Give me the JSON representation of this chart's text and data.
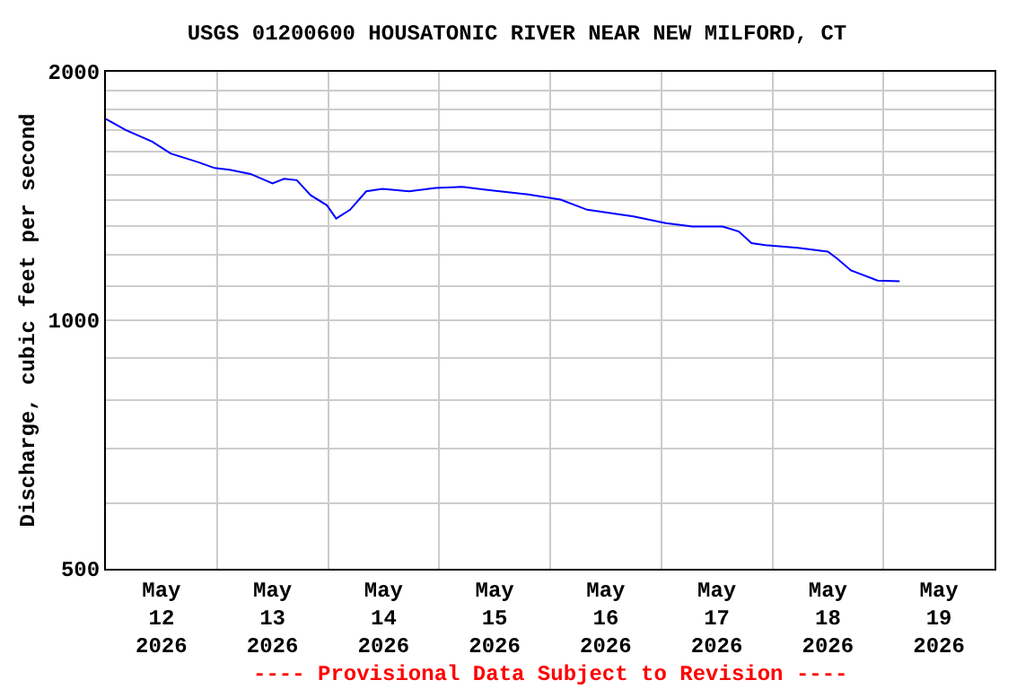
{
  "chart_data": {
    "type": "line",
    "title": "USGS 01200600 HOUSATONIC RIVER NEAR NEW MILFORD, CT",
    "ylabel": "Discharge, cubic feet per second",
    "annotations": [
      "---- Provisional Data Subject to Revision ----"
    ],
    "x": [
      "2026-05-12T00:00",
      "2026-05-12T04:15",
      "2026-05-12T10:00",
      "2026-05-12T14:00",
      "2026-05-12T20:00",
      "2026-05-12T23:30",
      "2026-05-13T03:00",
      "2026-05-13T07:15",
      "2026-05-13T12:00",
      "2026-05-13T14:30",
      "2026-05-13T17:15",
      "2026-05-13T20:15",
      "2026-05-13T23:45",
      "2026-05-14T01:45",
      "2026-05-14T04:45",
      "2026-05-14T08:15",
      "2026-05-14T11:45",
      "2026-05-14T17:30",
      "2026-05-14T23:15",
      "2026-05-15T05:00",
      "2026-05-15T10:30",
      "2026-05-15T19:15",
      "2026-05-16T02:15",
      "2026-05-16T08:00",
      "2026-05-16T18:00",
      "2026-05-17T01:00",
      "2026-05-17T06:45",
      "2026-05-17T13:15",
      "2026-05-17T16:45",
      "2026-05-17T19:30",
      "2026-05-17T22:30",
      "2026-05-18T05:30",
      "2026-05-18T12:00",
      "2026-05-18T14:00",
      "2026-05-18T17:00",
      "2026-05-18T22:45",
      "2026-05-19T03:30"
    ],
    "series": [
      {
        "color": "#0000ff",
        "values": [
          1753,
          1700,
          1646,
          1592,
          1554,
          1529,
          1521,
          1504,
          1465,
          1484,
          1478,
          1417,
          1378,
          1328,
          1361,
          1433,
          1443,
          1433,
          1446,
          1451,
          1438,
          1420,
          1400,
          1361,
          1336,
          1311,
          1299,
          1299,
          1281,
          1240,
          1233,
          1224,
          1211,
          1188,
          1149,
          1117,
          1115
        ]
      }
    ],
    "log": true,
    "ylim": [
      500,
      2000
    ],
    "yticks": [
      500,
      {
        "value": 600,
        "label": null
      },
      {
        "value": 700,
        "label": null
      },
      {
        "value": 800,
        "label": null
      },
      {
        "value": 900,
        "label": null
      },
      1000,
      {
        "value": 1100,
        "label": null
      },
      {
        "value": 1200,
        "label": null
      },
      {
        "value": 1300,
        "label": null
      },
      {
        "value": 1400,
        "label": null
      },
      {
        "value": 1500,
        "label": null
      },
      {
        "value": 1600,
        "label": null
      },
      {
        "value": 1700,
        "label": null
      },
      {
        "value": 1800,
        "label": null
      },
      {
        "value": 1900,
        "label": null
      },
      2000
    ],
    "xlim": [
      "2026-05-12T00:00",
      "2026-05-20T00:00"
    ],
    "xticks": [
      {
        "value": "2026-05-12T12:00",
        "label": "May\n12\n2026"
      },
      {
        "value": "2026-05-13T00:00",
        "label": null
      },
      {
        "value": "2026-05-13T12:00",
        "label": "May\n13\n2026"
      },
      {
        "value": "2026-05-14T00:00",
        "label": null
      },
      {
        "value": "2026-05-14T12:00",
        "label": "May\n14\n2026"
      },
      {
        "value": "2026-05-15T00:00",
        "label": null
      },
      {
        "value": "2026-05-15T12:00",
        "label": "May\n15\n2026"
      },
      {
        "value": "2026-05-16T00:00",
        "label": null
      },
      {
        "value": "2026-05-16T12:00",
        "label": "May\n16\n2026"
      },
      {
        "value": "2026-05-17T00:00",
        "label": null
      },
      {
        "value": "2026-05-17T12:00",
        "label": "May\n17\n2026"
      },
      {
        "value": "2026-05-18T00:00",
        "label": null
      },
      {
        "value": "2026-05-18T12:00",
        "label": "May\n18\n2026"
      },
      {
        "value": "2026-05-19T00:00",
        "label": null
      },
      {
        "value": "2026-05-19T12:00",
        "label": "May\n19\n2026"
      }
    ],
    "grid": true,
    "marker": "none",
    "line_style": "solid"
  }
}
